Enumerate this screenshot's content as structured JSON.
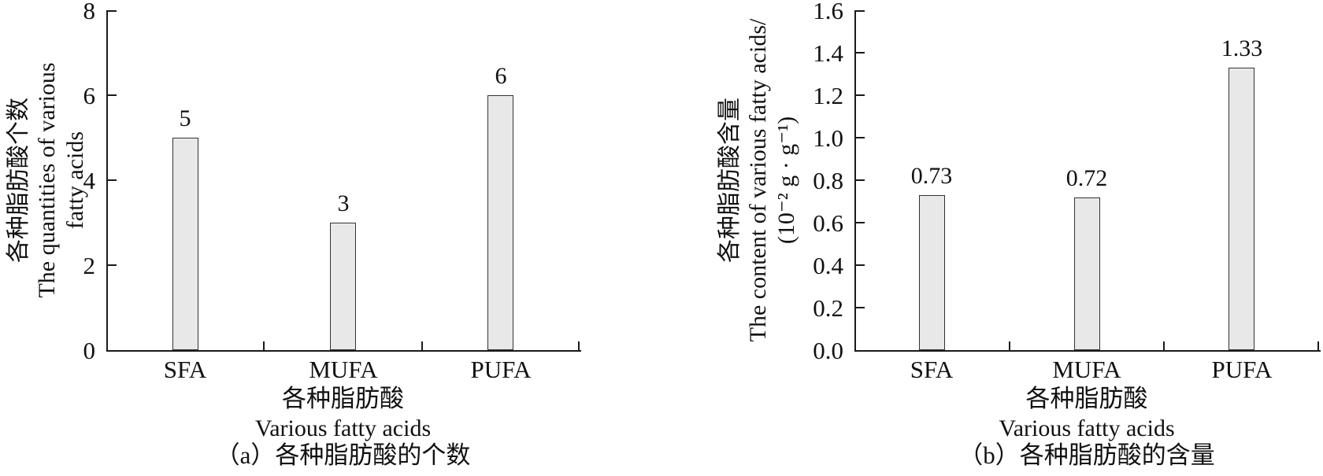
{
  "figure": {
    "background": "#ffffff",
    "text_color": "#111111",
    "axis_color": "#1a1a1a",
    "bar_fill": "#e8e8e8",
    "bar_border": "#333333"
  },
  "chart_data": [
    {
      "type": "bar",
      "panel": "a",
      "caption": "（a）各种脂肪酸的个数",
      "categories": [
        "SFA",
        "MUFA",
        "PUFA"
      ],
      "values": [
        5,
        3,
        6
      ],
      "bar_labels": [
        "5",
        "3",
        "6"
      ],
      "ylim": [
        0,
        8
      ],
      "y_ticks": [
        0,
        2,
        4,
        6,
        8
      ],
      "y_tick_labels": [
        "0",
        "2",
        "4",
        "6",
        "8"
      ],
      "ylabel_lines": [
        "各种脂肪酸个数",
        "The quantities of various",
        "fatty acids"
      ],
      "xlabel_lines": [
        "各种脂肪酸",
        "Various fatty acids"
      ],
      "grid": false,
      "legend": "none"
    },
    {
      "type": "bar",
      "panel": "b",
      "caption": "（b）各种脂肪酸的含量",
      "categories": [
        "SFA",
        "MUFA",
        "PUFA"
      ],
      "values": [
        0.73,
        0.72,
        1.33
      ],
      "bar_labels": [
        "0.73",
        "0.72",
        "1.33"
      ],
      "ylim": [
        0,
        1.6
      ],
      "y_ticks": [
        0,
        0.2,
        0.4,
        0.6,
        0.8,
        1.0,
        1.2,
        1.4,
        1.6
      ],
      "y_tick_labels": [
        "0.0",
        "0.2",
        "0.4",
        "0.6",
        "0.8",
        "1.0",
        "1.2",
        "1.4",
        "1.6"
      ],
      "ylabel_lines": [
        "各种脂肪酸含量",
        "The content of various fatty acids/",
        "(10⁻² g · g⁻¹)"
      ],
      "xlabel_lines": [
        "各种脂肪酸",
        "Various fatty acids"
      ],
      "grid": false,
      "legend": "none"
    }
  ]
}
